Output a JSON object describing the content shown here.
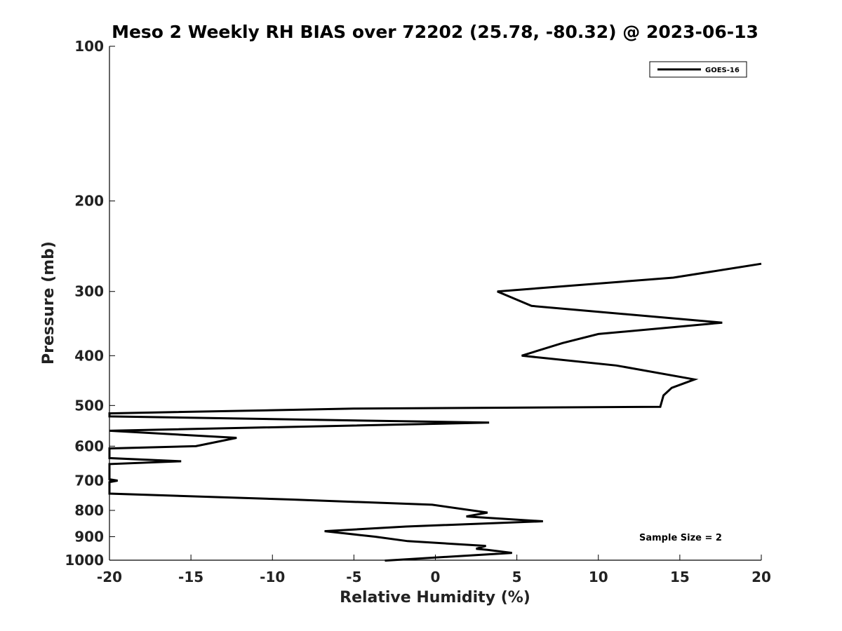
{
  "chart_data": {
    "type": "line",
    "title": "Meso 2 Weekly RH BIAS over 72202 (25.78, -80.32) @ 2023-06-13",
    "xlabel": "Relative Humidity (%)",
    "ylabel": "Pressure (mb)",
    "xlim": [
      -20,
      20
    ],
    "ylim": [
      1000,
      100
    ],
    "y_scale": "log",
    "x_ticks": [
      -20,
      -15,
      -10,
      -5,
      0,
      5,
      10,
      15,
      20
    ],
    "y_ticks": [
      100,
      200,
      300,
      400,
      500,
      600,
      700,
      800,
      900,
      1000
    ],
    "grid": false,
    "legend_position": "top-right",
    "series": [
      {
        "name": "GOES-16",
        "color": "#000000",
        "points": [
          {
            "x": 20.0,
            "y": 265
          },
          {
            "x": 14.6,
            "y": 282
          },
          {
            "x": 3.8,
            "y": 300
          },
          {
            "x": 5.9,
            "y": 320
          },
          {
            "x": 17.6,
            "y": 345
          },
          {
            "x": 10.0,
            "y": 363
          },
          {
            "x": 7.8,
            "y": 378
          },
          {
            "x": 5.3,
            "y": 400
          },
          {
            "x": 11.1,
            "y": 418
          },
          {
            "x": 15.9,
            "y": 445
          },
          {
            "x": 14.5,
            "y": 462
          },
          {
            "x": 14.0,
            "y": 478
          },
          {
            "x": 13.8,
            "y": 503
          },
          {
            "x": -5.0,
            "y": 507
          },
          {
            "x": -20.0,
            "y": 518
          },
          {
            "x": -20.0,
            "y": 525
          },
          {
            "x": 3.3,
            "y": 540
          },
          {
            "x": -20.0,
            "y": 560
          },
          {
            "x": -12.2,
            "y": 578
          },
          {
            "x": -14.7,
            "y": 600
          },
          {
            "x": -20.0,
            "y": 606
          },
          {
            "x": -20.0,
            "y": 633
          },
          {
            "x": -15.6,
            "y": 642
          },
          {
            "x": -20.0,
            "y": 650
          },
          {
            "x": -20.0,
            "y": 696
          },
          {
            "x": -19.5,
            "y": 700
          },
          {
            "x": -20.0,
            "y": 705
          },
          {
            "x": -20.0,
            "y": 742
          },
          {
            "x": -8.8,
            "y": 762
          },
          {
            "x": -0.2,
            "y": 780
          },
          {
            "x": 3.2,
            "y": 808
          },
          {
            "x": 1.9,
            "y": 822
          },
          {
            "x": 6.6,
            "y": 840
          },
          {
            "x": -1.8,
            "y": 860
          },
          {
            "x": -6.8,
            "y": 878
          },
          {
            "x": -3.7,
            "y": 900
          },
          {
            "x": -1.7,
            "y": 918
          },
          {
            "x": 3.1,
            "y": 938
          },
          {
            "x": 2.5,
            "y": 950
          },
          {
            "x": 3.2,
            "y": 955
          },
          {
            "x": 4.7,
            "y": 968
          },
          {
            "x": -3.1,
            "y": 1002
          }
        ]
      }
    ],
    "annotation": "Sample Size = 2"
  }
}
